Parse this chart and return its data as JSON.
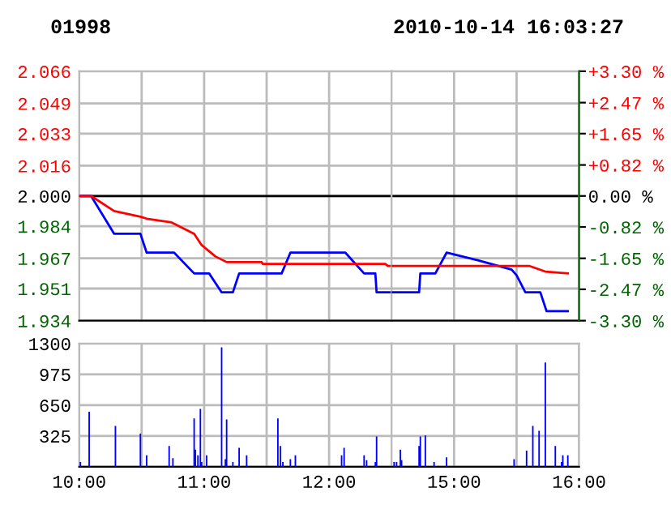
{
  "chart_data": [
    {
      "type": "line",
      "title": "01998",
      "series": [
        {
          "color": "#0000ff",
          "x": [
            10,
            10.095,
            10.28,
            10.49,
            10.54,
            10.76,
            10.92,
            11.04,
            11.14,
            11.23,
            11.28,
            11.62,
            11.69,
            12.13,
            12.28,
            12.37,
            12.38,
            12.5
          ],
          "values": [
            2.0,
            2.0,
            1.98,
            1.98,
            1.97,
            1.97,
            1.959,
            1.959,
            1.949,
            1.949,
            1.959,
            1.959,
            1.97,
            1.97,
            1.959,
            1.959,
            1.949,
            1.949
          ]
        },
        {
          "color": "#ff0000",
          "x": [
            10,
            10.095,
            10.28,
            10.49,
            10.54,
            10.74,
            10.92,
            10.98,
            11.09,
            11.18,
            11.46,
            11.47,
            12.45,
            12.47,
            12.5
          ],
          "values": [
            2.0,
            2.0,
            1.992,
            1.989,
            1.988,
            1.986,
            1.98,
            1.974,
            1.968,
            1.965,
            1.965,
            1.964,
            1.964,
            1.963,
            1.963
          ]
        }
      ],
      "xlim": [
        10,
        12.5
      ],
      "xticks": [
        10,
        10.5,
        11,
        11.5,
        12
      ],
      "ylim": [
        1.934,
        2.066
      ],
      "yticks": [
        {
          "value": 1.934,
          "label": "1.934"
        },
        {
          "value": 1.951,
          "label": "1.951"
        },
        {
          "value": 1.967,
          "label": "1.967"
        },
        {
          "value": 1.984,
          "label": "1.984"
        },
        {
          "value": 2.0,
          "label": "2.000"
        },
        {
          "value": 2.016,
          "label": "2.016"
        },
        {
          "value": 2.033,
          "label": "2.033"
        },
        {
          "value": 2.049,
          "label": "2.049"
        },
        {
          "value": 2.066,
          "label": "2.066"
        }
      ],
      "ref_lines": [
        {
          "axis": "y",
          "value": 2.0,
          "color": "#000000"
        }
      ],
      "grid": true,
      "tick_labels": "y",
      "marker": "none",
      "line_style": "solid",
      "legend": false
    },
    {
      "type": "line",
      "subtitle": "2010-10-14 16:03:27",
      "series": [
        {
          "color": "#0000ff",
          "x": [
            14.5,
            14.72,
            14.73,
            14.85,
            14.94,
            15.19,
            15.46,
            15.5,
            15.57,
            15.69,
            15.74,
            15.91
          ],
          "values": [
            1.949,
            1.949,
            1.959,
            1.959,
            1.97,
            1.966,
            1.961,
            1.958,
            1.949,
            1.949,
            1.939,
            1.939
          ]
        },
        {
          "color": "#ff0000",
          "x": [
            14.5,
            15.6,
            15.73,
            15.91
          ],
          "values": [
            1.963,
            1.963,
            1.96,
            1.959
          ]
        }
      ],
      "xlim": [
        14.5,
        16
      ],
      "xticks": [
        15,
        15.5,
        16
      ],
      "ylim": [
        1.934,
        2.066
      ],
      "yticks": [
        1.934,
        1.951,
        1.967,
        1.984,
        2.0,
        2.016,
        2.033,
        2.049,
        2.066
      ],
      "y2lim": [
        -3.3,
        3.3
      ],
      "y2ticks": [
        {
          "value": -3.3,
          "label": "-3.30 %"
        },
        {
          "value": -2.47,
          "label": "-2.47 %"
        },
        {
          "value": -1.65,
          "label": "-1.65 %"
        },
        {
          "value": -0.82,
          "label": "-0.82 %"
        },
        {
          "value": 0,
          "label": "0.00 %"
        },
        {
          "value": 0.82,
          "label": "+0.82 %"
        },
        {
          "value": 1.65,
          "label": "+1.65 %"
        },
        {
          "value": 2.47,
          "label": "+2.47 %"
        },
        {
          "value": 3.3,
          "label": "+3.30 %"
        }
      ],
      "ref_lines": [
        {
          "axis": "y",
          "value": 2.0,
          "color": "#000000"
        }
      ],
      "grid": true,
      "tick_labels": false,
      "marker": "none",
      "line_style": "solid",
      "legend": false
    },
    {
      "type": "bar",
      "x": [
        10.01,
        10.08,
        10.29,
        10.49,
        10.54,
        10.72,
        10.75,
        10.92,
        10.93,
        10.95,
        10.97,
        10.98,
        11.02,
        11.14,
        11.17,
        11.18,
        11.23,
        11.28,
        11.34,
        11.59,
        11.61,
        11.63,
        11.69,
        11.73,
        12.1,
        12.12,
        12.28,
        12.3,
        12.37,
        12.38
      ],
      "values": [
        50,
        580,
        430,
        350,
        120,
        220,
        90,
        510,
        180,
        120,
        610,
        50,
        120,
        1260,
        80,
        500,
        50,
        200,
        120,
        510,
        220,
        50,
        80,
        120,
        120,
        200,
        120,
        70,
        50,
        320
      ],
      "color": "#0000ff",
      "xlim": [
        10,
        12.5
      ],
      "xticks": [
        {
          "value": 10,
          "label": "10:00"
        },
        {
          "value": 10.5,
          "label": null
        },
        {
          "value": 11,
          "label": "11:00"
        },
        {
          "value": 11.5,
          "label": null
        },
        {
          "value": 12,
          "label": "12:00"
        }
      ],
      "ylim": [
        0,
        1300
      ],
      "yticks": [
        {
          "value": 0,
          "label": null
        },
        325,
        650,
        975,
        1300
      ],
      "grid": true,
      "legend": false
    },
    {
      "type": "bar",
      "x": [
        14.52,
        14.54,
        14.57,
        14.58,
        14.72,
        14.73,
        14.77,
        14.84,
        14.94,
        15.48,
        15.58,
        15.63,
        15.68,
        15.73,
        15.81,
        15.86,
        15.87,
        15.91
      ],
      "values": [
        50,
        50,
        180,
        70,
        220,
        320,
        330,
        50,
        100,
        80,
        170,
        430,
        380,
        1100,
        220,
        50,
        120,
        120
      ],
      "color": "#0000ff",
      "xlim": [
        14.5,
        16
      ],
      "xticks": [
        {
          "value": 15,
          "label": "15:00"
        },
        {
          "value": 15.5,
          "label": null
        },
        {
          "value": 16,
          "label": "16:00"
        }
      ],
      "ylim": [
        0,
        1300
      ],
      "yticks": [
        {
          "value": 0,
          "label": null
        },
        325,
        650,
        975,
        1300
      ],
      "grid": true,
      "tick_labels": "x",
      "legend": false
    }
  ]
}
